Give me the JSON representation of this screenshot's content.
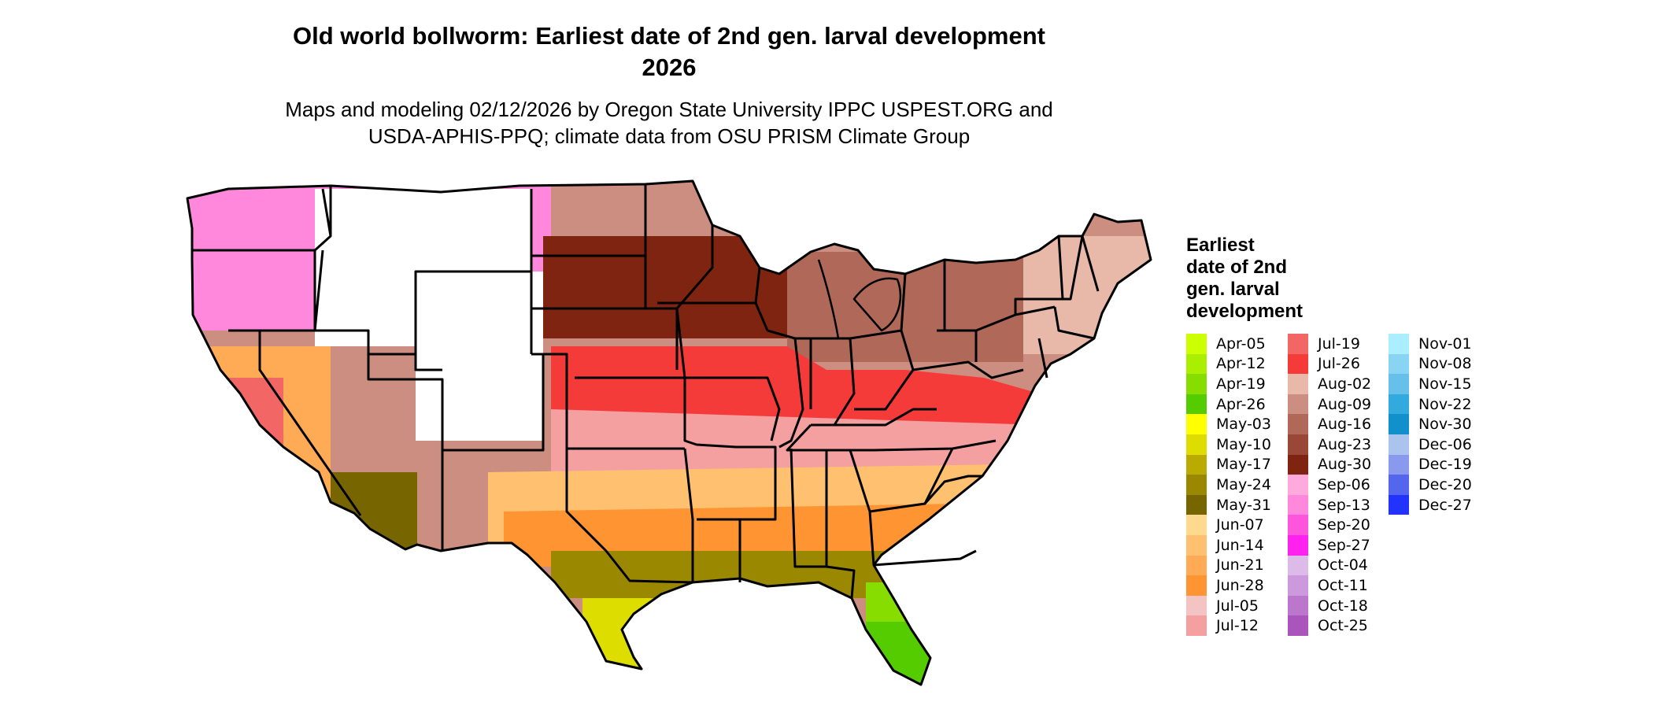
{
  "figure": {
    "title_line1": "Old world bollworm: Earliest date of 2nd gen. larval development",
    "title_line2": "2026",
    "subtitle_line1": "Maps and modeling 02/12/2026 by Oregon State University IPPC USPEST.ORG and",
    "subtitle_line2": "USDA-APHIS-PPQ; climate data from OSU PRISM Climate Group"
  },
  "map": {
    "region": "Contiguous United States",
    "boundary_color": "#000000",
    "no_data_color": "#ffffff"
  },
  "legend": {
    "title_lines": [
      "Earliest",
      "date of 2nd",
      "gen. larval",
      "development"
    ],
    "columns": [
      [
        {
          "label": "Apr-05",
          "color": "#ccff00"
        },
        {
          "label": "Apr-12",
          "color": "#aaee00"
        },
        {
          "label": "Apr-19",
          "color": "#88dd00"
        },
        {
          "label": "Apr-26",
          "color": "#55cc00"
        },
        {
          "label": "May-03",
          "color": "#ffff00"
        },
        {
          "label": "May-10",
          "color": "#dddd00"
        },
        {
          "label": "May-17",
          "color": "#bbaa00"
        },
        {
          "label": "May-24",
          "color": "#998800"
        },
        {
          "label": "May-31",
          "color": "#776600"
        },
        {
          "label": "Jun-07",
          "color": "#ffd990"
        },
        {
          "label": "Jun-14",
          "color": "#ffc070"
        },
        {
          "label": "Jun-21",
          "color": "#ffaa55"
        },
        {
          "label": "Jun-28",
          "color": "#ff9433"
        },
        {
          "label": "Jul-05",
          "color": "#f4c4c4"
        },
        {
          "label": "Jul-12",
          "color": "#f4a0a0"
        }
      ],
      [
        {
          "label": "Jul-19",
          "color": "#f26666"
        },
        {
          "label": "Jul-26",
          "color": "#f53a3a"
        },
        {
          "label": "Aug-02",
          "color": "#e8b8a8"
        },
        {
          "label": "Aug-09",
          "color": "#cc8e80"
        },
        {
          "label": "Aug-16",
          "color": "#b06858"
        },
        {
          "label": "Aug-23",
          "color": "#994838"
        },
        {
          "label": "Aug-30",
          "color": "#7f2410"
        },
        {
          "label": "Sep-06",
          "color": "#ffaadd"
        },
        {
          "label": "Sep-13",
          "color": "#ff88dd"
        },
        {
          "label": "Sep-20",
          "color": "#ff55dd"
        },
        {
          "label": "Sep-27",
          "color": "#ff22ee"
        },
        {
          "label": "Oct-04",
          "color": "#ddbbe8"
        },
        {
          "label": "Oct-11",
          "color": "#cc99dd"
        },
        {
          "label": "Oct-18",
          "color": "#bb77cc"
        },
        {
          "label": "Oct-25",
          "color": "#aa55bb"
        }
      ],
      [
        {
          "label": "Nov-01",
          "color": "#aaeeff"
        },
        {
          "label": "Nov-08",
          "color": "#88d4f2"
        },
        {
          "label": "Nov-15",
          "color": "#66c0ea"
        },
        {
          "label": "Nov-22",
          "color": "#33aadd"
        },
        {
          "label": "Nov-30",
          "color": "#1190cc"
        },
        {
          "label": "Dec-06",
          "color": "#aac4ee"
        },
        {
          "label": "Dec-19",
          "color": "#8899ee"
        },
        {
          "label": "Dec-20",
          "color": "#5566ee"
        },
        {
          "label": "Dec-27",
          "color": "#2233ff"
        }
      ]
    ]
  }
}
